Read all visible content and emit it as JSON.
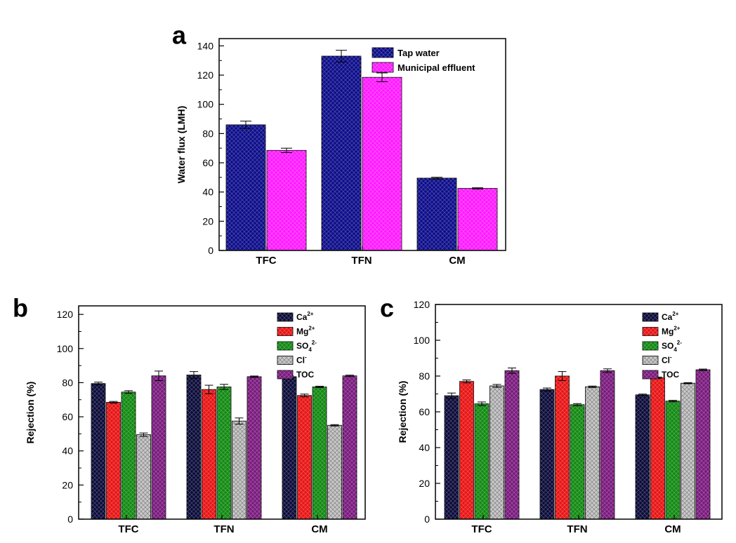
{
  "chart_data": [
    {
      "panel": "a",
      "type": "bar",
      "ylabel": "Water flux (LMH)",
      "xlabel": "",
      "ylim": [
        0,
        145
      ],
      "yticks": [
        "0",
        "20",
        "40",
        "60",
        "80",
        "100",
        "120",
        "140"
      ],
      "categories": [
        "TFC",
        "TFN",
        "CM"
      ],
      "legend_position": "top-right",
      "series": [
        {
          "name": "Tap water",
          "color": "#0d0d8a",
          "values": [
            86,
            133,
            49.5
          ],
          "errors": [
            2.5,
            4,
            0.6
          ]
        },
        {
          "name": "Municipal effluent",
          "color": "#ff1aff",
          "values": [
            68.5,
            118.5,
            42.5
          ],
          "errors": [
            1.5,
            3,
            0.4
          ]
        }
      ]
    },
    {
      "panel": "b",
      "type": "bar",
      "ylabel": "Rejection (%)",
      "xlabel": "",
      "ylim": [
        0,
        125
      ],
      "yticks": [
        "0",
        "20",
        "40",
        "60",
        "80",
        "100",
        "120"
      ],
      "categories": [
        "TFC",
        "TFN",
        "CM"
      ],
      "legend_position": "top-right",
      "series": [
        {
          "name": "Ca",
          "sup": "2+",
          "color": "#0b0b3a",
          "values": [
            79.5,
            84.5,
            83.5
          ],
          "errors": [
            0.8,
            2,
            0.5
          ]
        },
        {
          "name": "Mg",
          "sup": "2+",
          "color": "#e81414",
          "values": [
            68.5,
            76,
            72.5
          ],
          "errors": [
            0.5,
            2.5,
            0.8
          ]
        },
        {
          "name": "SO",
          "sub": "4",
          "sup": "2-",
          "color": "#128a12",
          "values": [
            74.5,
            77.5,
            77.5
          ],
          "errors": [
            0.8,
            1.5,
            0.4
          ]
        },
        {
          "name": "Cl",
          "sup": "-",
          "color": "#c8c8c8",
          "values": [
            49.5,
            57.5,
            55
          ],
          "errors": [
            1,
            1.8,
            0.4
          ]
        },
        {
          "name": "TOC",
          "color": "#7a1a7e",
          "values": [
            84,
            83.5,
            84
          ],
          "errors": [
            2.8,
            0.4,
            0.4
          ]
        }
      ]
    },
    {
      "panel": "c",
      "type": "bar",
      "ylabel": "Rejection (%)",
      "xlabel": "",
      "ylim": [
        0,
        120
      ],
      "yticks": [
        "0",
        "20",
        "40",
        "60",
        "80",
        "100",
        "120"
      ],
      "categories": [
        "TFC",
        "TFN",
        "CM"
      ],
      "legend_position": "top-right",
      "series": [
        {
          "name": "Ca",
          "sup": "2+",
          "color": "#0b0b3a",
          "values": [
            69,
            72.5,
            69.5
          ],
          "errors": [
            1.5,
            0.8,
            0.4
          ]
        },
        {
          "name": "Mg",
          "sup": "2+",
          "color": "#e81414",
          "values": [
            77,
            80,
            79
          ],
          "errors": [
            0.8,
            2.5,
            0.4
          ]
        },
        {
          "name": "SO",
          "sub": "4",
          "sup": "2-",
          "color": "#128a12",
          "values": [
            64.5,
            64,
            66
          ],
          "errors": [
            1,
            0.6,
            0.4
          ]
        },
        {
          "name": "Cl",
          "sup": "-",
          "color": "#c8c8c8",
          "values": [
            74.5,
            74,
            76
          ],
          "errors": [
            0.8,
            0.4,
            0.3
          ]
        },
        {
          "name": "TOC",
          "color": "#7a1a7e",
          "values": [
            83,
            83,
            83.5
          ],
          "errors": [
            1.5,
            1,
            0.4
          ]
        }
      ]
    }
  ]
}
